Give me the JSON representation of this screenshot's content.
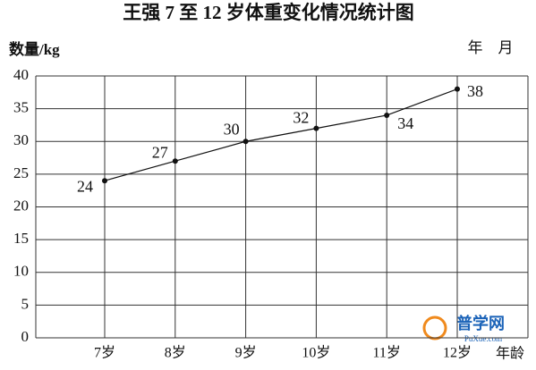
{
  "chart_data": {
    "type": "line",
    "title": "王强 7 至 12 岁体重变化情况统计图",
    "y_label": "数量/kg",
    "date_label": "年　月",
    "x_label": "年龄",
    "categories": [
      "7岁",
      "8岁",
      "9岁",
      "10岁",
      "11岁",
      "12岁"
    ],
    "values": [
      24,
      27,
      30,
      32,
      34,
      38
    ],
    "color": "#111111",
    "ylim": [
      0,
      40
    ],
    "yticks": [
      0,
      5,
      10,
      15,
      20,
      25,
      30,
      35,
      40
    ],
    "grid": true,
    "watermark": [
      "普学网",
      "PuXue.com"
    ]
  }
}
